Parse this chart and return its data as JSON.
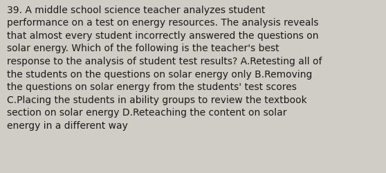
{
  "lines": [
    "39. A middle school science teacher analyzes student",
    "performance on a test on energy resources. The analysis reveals",
    "that almost every student incorrectly answered the questions on",
    "solar energy. Which of the following is the teacher's best",
    "response to the analysis of student test results? A.Retesting all of",
    "the students on the questions on solar energy only B.Removing",
    "the questions on solar energy from the students' test scores",
    "C.Placing the students in ability groups to review the textbook",
    "section on solar energy D.Reteaching the content on solar",
    "energy in a different way"
  ],
  "background_color": "#d0ccc6",
  "text_color": "#1a1a1a",
  "font_size": 10.0,
  "fig_width": 5.58,
  "fig_height": 2.51,
  "linespacing": 1.42
}
